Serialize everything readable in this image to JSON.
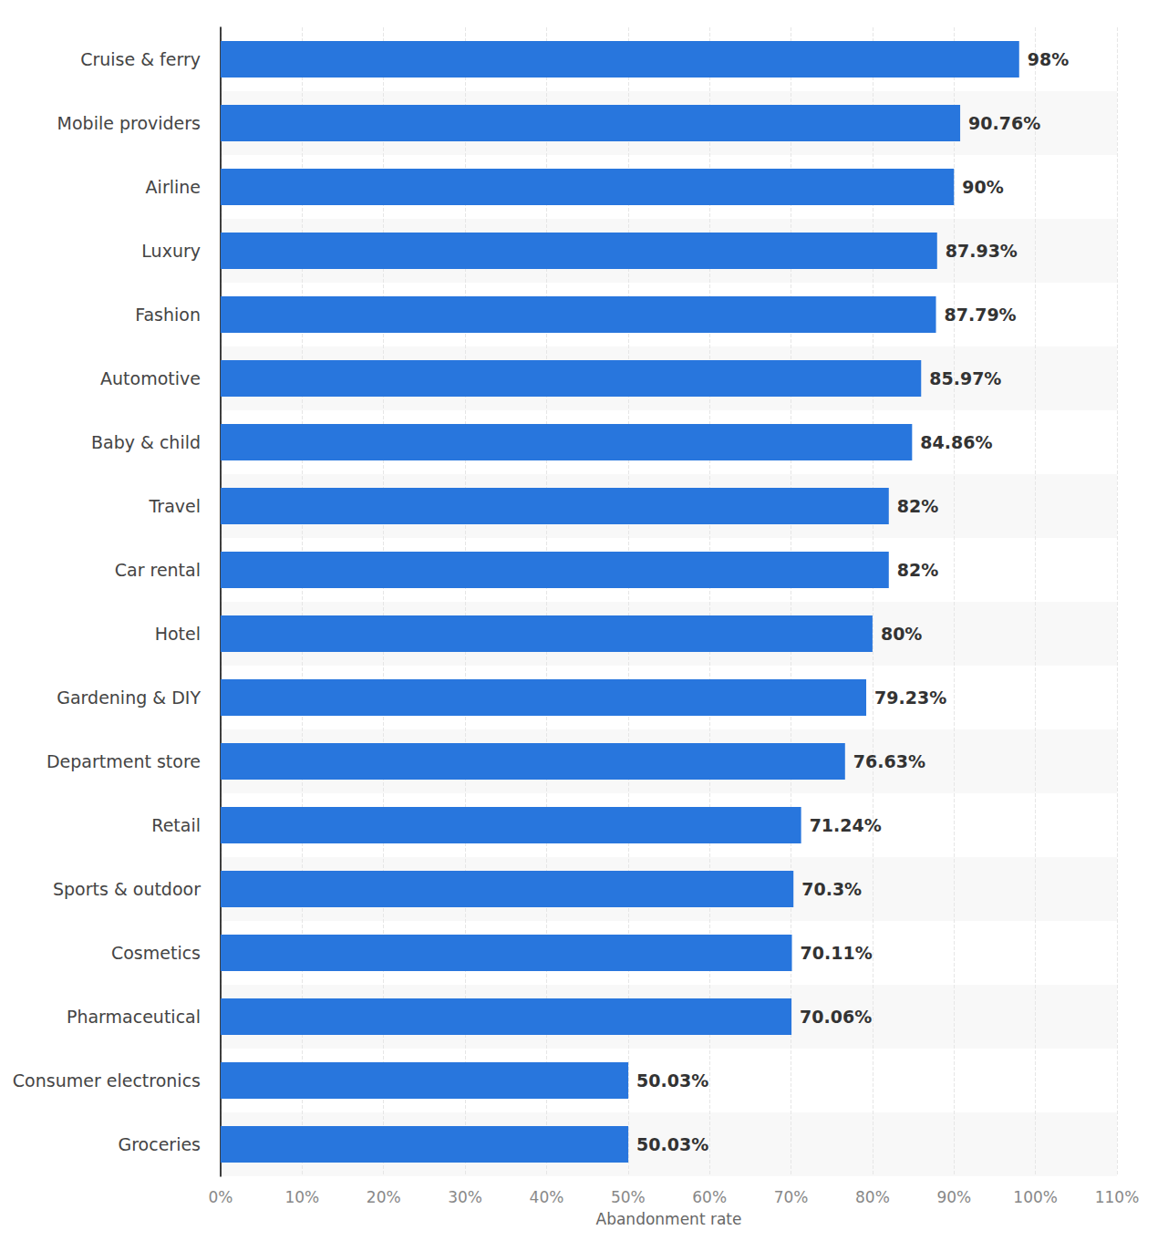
{
  "chart_data": {
    "type": "bar",
    "orientation": "horizontal",
    "categories": [
      "Cruise & ferry",
      "Mobile providers",
      "Airline",
      "Luxury",
      "Fashion",
      "Automotive",
      "Baby & child",
      "Travel",
      "Car rental",
      "Hotel",
      "Gardening & DIY",
      "Department store",
      "Retail",
      "Sports & outdoor",
      "Cosmetics",
      "Pharmaceutical",
      "Consumer electronics",
      "Groceries"
    ],
    "values": [
      98,
      90.76,
      90,
      87.93,
      87.79,
      85.97,
      84.86,
      82,
      82,
      80,
      79.23,
      76.63,
      71.24,
      70.3,
      70.11,
      70.06,
      50.03,
      50.03
    ],
    "value_labels": [
      "98%",
      "90.76%",
      "90%",
      "87.93%",
      "87.79%",
      "85.97%",
      "84.86%",
      "82%",
      "82%",
      "80%",
      "79.23%",
      "76.63%",
      "71.24%",
      "70.3%",
      "70.11%",
      "70.06%",
      "50.03%",
      "50.03%"
    ],
    "data_labels": true,
    "color": "#2876dd",
    "xlabel": "Abandonment rate",
    "xlim": [
      0,
      110
    ],
    "xticks": [
      {
        "value": 0,
        "label": "0%"
      },
      {
        "value": 10,
        "label": "10%"
      },
      {
        "value": 20,
        "label": "20%"
      },
      {
        "value": 30,
        "label": "30%"
      },
      {
        "value": 40,
        "label": "40%"
      },
      {
        "value": 50,
        "label": "50%"
      },
      {
        "value": 60,
        "label": "60%"
      },
      {
        "value": 70,
        "label": "70%"
      },
      {
        "value": 80,
        "label": "80%"
      },
      {
        "value": 90,
        "label": "90%"
      },
      {
        "value": 100,
        "label": "100%"
      },
      {
        "value": 110,
        "label": "110%"
      }
    ],
    "grid": true
  }
}
